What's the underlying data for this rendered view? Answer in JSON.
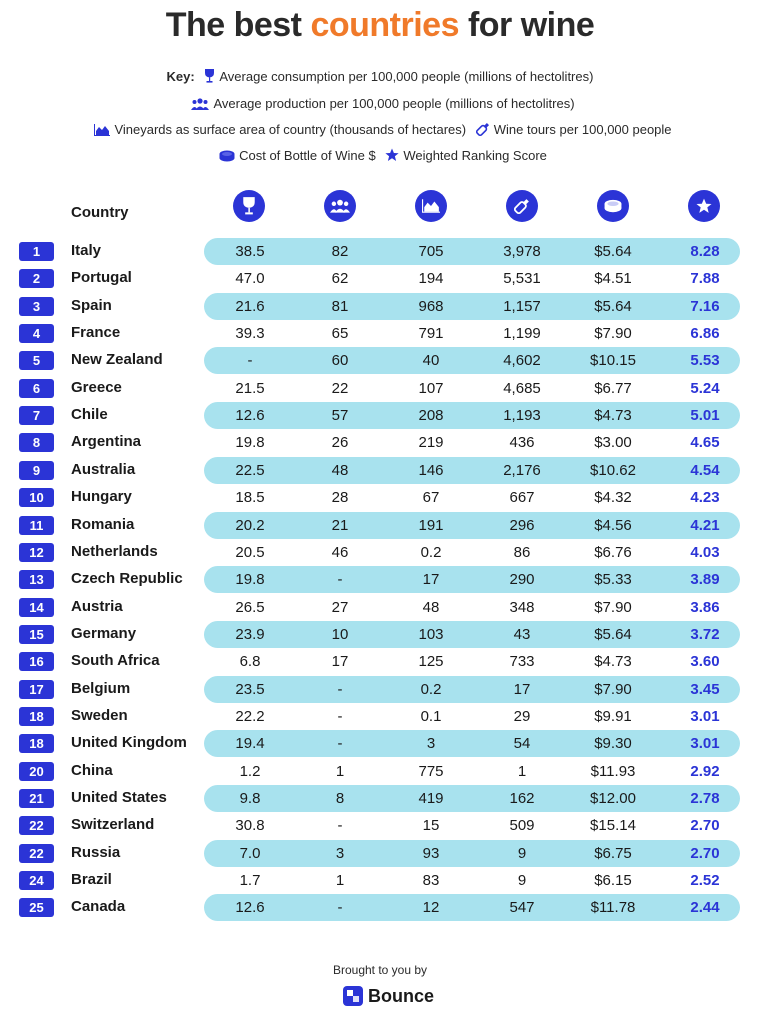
{
  "title": {
    "part1": "The best ",
    "accent": "countries",
    "part2": " for wine"
  },
  "key": {
    "label": "Key:",
    "items": [
      {
        "icon": "wine-glass-icon",
        "text": "Average consumption per 100,000 people (millions of hectolitres)"
      },
      {
        "icon": "people-icon",
        "text": "Average production per 100,000 people (millions of hectolitres)"
      },
      {
        "icon": "area-chart-icon",
        "text": "Vineyards as surface area of country (thousands of hectares)"
      },
      {
        "icon": "wine-bottle-icon",
        "text": "Wine tours per 100,000 people"
      },
      {
        "icon": "coin-stack-icon",
        "text": "Cost of Bottle of Wine $"
      },
      {
        "icon": "star-icon",
        "text": "Weighted Ranking Score"
      }
    ]
  },
  "colors": {
    "accent": "#f07a2a",
    "brand_blue": "#2b34d6",
    "band": "#a8e2ee"
  },
  "table": {
    "country_header": "Country",
    "column_icons": [
      "wine-glass-icon",
      "people-icon",
      "area-chart-icon",
      "wine-bottle-icon",
      "coin-stack-icon",
      "star-icon"
    ]
  },
  "chart_data": {
    "type": "table",
    "columns": [
      "Rank",
      "Country",
      "Average consumption",
      "Average production",
      "Vineyards",
      "Wine tours",
      "Cost of Bottle of Wine $",
      "Weighted Ranking Score"
    ],
    "rows": [
      {
        "rank": "1",
        "country": "Italy",
        "consumption": "38.5",
        "production": "82",
        "vineyards": "705",
        "tours": "3,978",
        "cost": "$5.64",
        "score": "8.28"
      },
      {
        "rank": "2",
        "country": "Portugal",
        "consumption": "47.0",
        "production": "62",
        "vineyards": "194",
        "tours": "5,531",
        "cost": "$4.51",
        "score": "7.88"
      },
      {
        "rank": "3",
        "country": "Spain",
        "consumption": "21.6",
        "production": "81",
        "vineyards": "968",
        "tours": "1,157",
        "cost": "$5.64",
        "score": "7.16"
      },
      {
        "rank": "4",
        "country": "France",
        "consumption": "39.3",
        "production": "65",
        "vineyards": "791",
        "tours": "1,199",
        "cost": "$7.90",
        "score": "6.86"
      },
      {
        "rank": "5",
        "country": "New Zealand",
        "consumption": "-",
        "production": "60",
        "vineyards": "40",
        "tours": "4,602",
        "cost": "$10.15",
        "score": "5.53"
      },
      {
        "rank": "6",
        "country": "Greece",
        "consumption": "21.5",
        "production": "22",
        "vineyards": "107",
        "tours": "4,685",
        "cost": "$6.77",
        "score": "5.24"
      },
      {
        "rank": "7",
        "country": "Chile",
        "consumption": "12.6",
        "production": "57",
        "vineyards": "208",
        "tours": "1,193",
        "cost": "$4.73",
        "score": "5.01"
      },
      {
        "rank": "8",
        "country": "Argentina",
        "consumption": "19.8",
        "production": "26",
        "vineyards": "219",
        "tours": "436",
        "cost": "$3.00",
        "score": "4.65"
      },
      {
        "rank": "9",
        "country": "Australia",
        "consumption": "22.5",
        "production": "48",
        "vineyards": "146",
        "tours": "2,176",
        "cost": "$10.62",
        "score": "4.54"
      },
      {
        "rank": "10",
        "country": "Hungary",
        "consumption": "18.5",
        "production": "28",
        "vineyards": "67",
        "tours": "667",
        "cost": "$4.32",
        "score": "4.23"
      },
      {
        "rank": "11",
        "country": "Romania",
        "consumption": "20.2",
        "production": "21",
        "vineyards": "191",
        "tours": "296",
        "cost": "$4.56",
        "score": "4.21"
      },
      {
        "rank": "12",
        "country": "Netherlands",
        "consumption": "20.5",
        "production": "46",
        "vineyards": "0.2",
        "tours": "86",
        "cost": "$6.76",
        "score": "4.03"
      },
      {
        "rank": "13",
        "country": "Czech Republic",
        "consumption": "19.8",
        "production": "-",
        "vineyards": "17",
        "tours": "290",
        "cost": "$5.33",
        "score": "3.89"
      },
      {
        "rank": "14",
        "country": "Austria",
        "consumption": "26.5",
        "production": "27",
        "vineyards": "48",
        "tours": "348",
        "cost": "$7.90",
        "score": "3.86"
      },
      {
        "rank": "15",
        "country": "Germany",
        "consumption": "23.9",
        "production": "10",
        "vineyards": "103",
        "tours": "43",
        "cost": "$5.64",
        "score": "3.72"
      },
      {
        "rank": "16",
        "country": "South Africa",
        "consumption": "6.8",
        "production": "17",
        "vineyards": "125",
        "tours": "733",
        "cost": "$4.73",
        "score": "3.60"
      },
      {
        "rank": "17",
        "country": "Belgium",
        "consumption": "23.5",
        "production": "-",
        "vineyards": "0.2",
        "tours": "17",
        "cost": "$7.90",
        "score": "3.45"
      },
      {
        "rank": "18",
        "country": "Sweden",
        "consumption": "22.2",
        "production": "-",
        "vineyards": "0.1",
        "tours": "29",
        "cost": "$9.91",
        "score": "3.01"
      },
      {
        "rank": "18",
        "country": "United Kingdom",
        "consumption": "19.4",
        "production": "-",
        "vineyards": "3",
        "tours": "54",
        "cost": "$9.30",
        "score": "3.01"
      },
      {
        "rank": "20",
        "country": "China",
        "consumption": "1.2",
        "production": "1",
        "vineyards": "775",
        "tours": "1",
        "cost": "$11.93",
        "score": "2.92"
      },
      {
        "rank": "21",
        "country": "United States",
        "consumption": "9.8",
        "production": "8",
        "vineyards": "419",
        "tours": "162",
        "cost": "$12.00",
        "score": "2.78"
      },
      {
        "rank": "22",
        "country": "Switzerland",
        "consumption": "30.8",
        "production": "-",
        "vineyards": "15",
        "tours": "509",
        "cost": "$15.14",
        "score": "2.70"
      },
      {
        "rank": "22",
        "country": "Russia",
        "consumption": "7.0",
        "production": "3",
        "vineyards": "93",
        "tours": "9",
        "cost": "$6.75",
        "score": "2.70"
      },
      {
        "rank": "24",
        "country": "Brazil",
        "consumption": "1.7",
        "production": "1",
        "vineyards": "83",
        "tours": "9",
        "cost": "$6.15",
        "score": "2.52"
      },
      {
        "rank": "25",
        "country": "Canada",
        "consumption": "12.6",
        "production": "-",
        "vineyards": "12",
        "tours": "547",
        "cost": "$11.78",
        "score": "2.44"
      }
    ]
  },
  "footer": {
    "brought": "Brought to you by",
    "brand": "Bounce"
  }
}
